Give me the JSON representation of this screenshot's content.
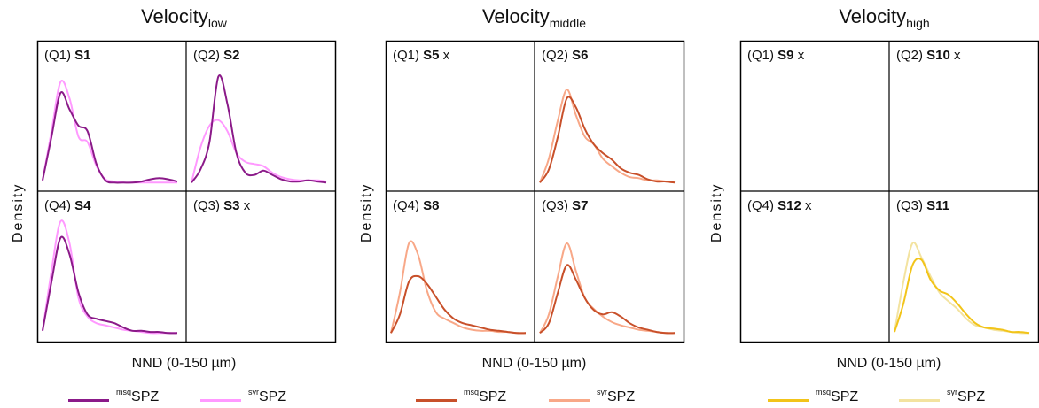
{
  "x_label": "NND (0-150 µm)",
  "y_label": "Density",
  "legend_suffix": "SPZ",
  "groups": [
    {
      "title_main": "Velocity",
      "title_sub": "low",
      "legend": [
        {
          "sup": "msq",
          "color": "#8B1A89"
        },
        {
          "sup": "syr",
          "color": "#FF99FF"
        }
      ],
      "panels": [
        {
          "q": "(Q1)",
          "s": "S1",
          "x": ""
        },
        {
          "q": "(Q2)",
          "s": "S2",
          "x": ""
        },
        {
          "q": "(Q4)",
          "s": "S4",
          "x": ""
        },
        {
          "q": "(Q3)",
          "s": "S3",
          "x": "x"
        }
      ]
    },
    {
      "title_main": "Velocity",
      "title_sub": "middle",
      "legend": [
        {
          "sup": "msq",
          "color": "#C8502A"
        },
        {
          "sup": "syr",
          "color": "#F8A888"
        }
      ],
      "panels": [
        {
          "q": "(Q1)",
          "s": "S5",
          "x": "x"
        },
        {
          "q": "(Q2)",
          "s": "S6",
          "x": ""
        },
        {
          "q": "(Q4)",
          "s": "S8",
          "x": ""
        },
        {
          "q": "(Q3)",
          "s": "S7",
          "x": ""
        }
      ]
    },
    {
      "title_main": "Velocity",
      "title_sub": "high",
      "legend": [
        {
          "sup": "msq",
          "color": "#F2C419"
        },
        {
          "sup": "syr",
          "color": "#F3E3A0"
        }
      ],
      "panels": [
        {
          "q": "(Q1)",
          "s": "S9",
          "x": "x"
        },
        {
          "q": "(Q2)",
          "s": "S10",
          "x": "x"
        },
        {
          "q": "(Q4)",
          "s": "S12",
          "x": "x"
        },
        {
          "q": "(Q3)",
          "s": "S11",
          "x": ""
        }
      ]
    }
  ],
  "chart_data": [
    {
      "type": "line",
      "title": "Velocity low",
      "xlabel": "NND (0-150 µm)",
      "ylabel": "Density",
      "x": [
        0,
        10,
        20,
        30,
        40,
        50,
        60,
        70,
        80,
        90,
        100,
        110,
        120,
        130,
        140,
        150
      ],
      "panels": [
        {
          "panel": "S1",
          "series": [
            {
              "name": "msqSPZ",
              "values": [
                0.05,
                0.45,
                0.85,
                0.7,
                0.55,
                0.5,
                0.2,
                0.05,
                0.03,
                0.03,
                0.03,
                0.04,
                0.06,
                0.07,
                0.06,
                0.04
              ]
            },
            {
              "name": "syrSPZ",
              "values": [
                0.05,
                0.5,
                0.95,
                0.8,
                0.45,
                0.4,
                0.18,
                0.06,
                0.04,
                0.03,
                0.03,
                0.03,
                0.03,
                0.03,
                0.03,
                0.03
              ]
            }
          ]
        },
        {
          "panel": "S2",
          "series": [
            {
              "name": "msqSPZ",
              "values": [
                0.03,
                0.15,
                0.4,
                1.0,
                0.75,
                0.3,
                0.12,
                0.1,
                0.14,
                0.1,
                0.06,
                0.04,
                0.04,
                0.05,
                0.04,
                0.03
              ]
            },
            {
              "name": "syrSPZ",
              "values": [
                0.03,
                0.35,
                0.55,
                0.6,
                0.5,
                0.3,
                0.22,
                0.2,
                0.18,
                0.12,
                0.08,
                0.06,
                0.05,
                0.05,
                0.05,
                0.04
              ]
            }
          ]
        },
        {
          "panel": "S4",
          "series": [
            {
              "name": "msqSPZ",
              "values": [
                0.05,
                0.5,
                0.9,
                0.75,
                0.4,
                0.2,
                0.16,
                0.14,
                0.12,
                0.08,
                0.05,
                0.05,
                0.04,
                0.04,
                0.03,
                0.03
              ]
            },
            {
              "name": "syrSPZ",
              "values": [
                0.05,
                0.6,
                1.05,
                0.85,
                0.35,
                0.18,
                0.12,
                0.1,
                0.08,
                0.06,
                0.05,
                0.04,
                0.03,
                0.03,
                0.03,
                0.03
              ]
            }
          ]
        },
        {
          "panel": "S3",
          "series": []
        }
      ]
    },
    {
      "type": "line",
      "title": "Velocity middle",
      "xlabel": "NND (0-150 µm)",
      "ylabel": "Density",
      "x": [
        0,
        10,
        20,
        30,
        40,
        50,
        60,
        70,
        80,
        90,
        100,
        110,
        120,
        130,
        140,
        150
      ],
      "panels": [
        {
          "panel": "S5",
          "series": []
        },
        {
          "panel": "S6",
          "series": [
            {
              "name": "msqSPZ",
              "values": [
                0.03,
                0.15,
                0.45,
                0.8,
                0.72,
                0.52,
                0.38,
                0.3,
                0.24,
                0.16,
                0.12,
                0.1,
                0.06,
                0.04,
                0.04,
                0.03
              ]
            },
            {
              "name": "syrSPZ",
              "values": [
                0.03,
                0.25,
                0.6,
                0.88,
                0.65,
                0.45,
                0.38,
                0.25,
                0.18,
                0.12,
                0.08,
                0.07,
                0.05,
                0.05,
                0.04,
                0.03
              ]
            }
          ]
        },
        {
          "panel": "S8",
          "series": [
            {
              "name": "msqSPZ",
              "values": [
                0.03,
                0.2,
                0.5,
                0.55,
                0.48,
                0.36,
                0.24,
                0.16,
                0.12,
                0.1,
                0.08,
                0.06,
                0.05,
                0.04,
                0.03,
                0.03
              ]
            },
            {
              "name": "syrSPZ",
              "values": [
                0.03,
                0.4,
                0.85,
                0.75,
                0.42,
                0.22,
                0.16,
                0.12,
                0.08,
                0.06,
                0.05,
                0.05,
                0.04,
                0.04,
                0.03,
                0.03
              ]
            }
          ]
        },
        {
          "panel": "S7",
          "series": [
            {
              "name": "msqSPZ",
              "values": [
                0.03,
                0.12,
                0.4,
                0.65,
                0.52,
                0.35,
                0.24,
                0.2,
                0.22,
                0.18,
                0.12,
                0.08,
                0.06,
                0.04,
                0.03,
                0.03
              ]
            },
            {
              "name": "syrSPZ",
              "values": [
                0.03,
                0.2,
                0.55,
                0.85,
                0.6,
                0.35,
                0.25,
                0.18,
                0.13,
                0.1,
                0.08,
                0.06,
                0.05,
                0.04,
                0.03,
                0.03
              ]
            }
          ]
        }
      ]
    },
    {
      "type": "line",
      "title": "Velocity high",
      "xlabel": "NND (0-150 µm)",
      "ylabel": "Density",
      "x": [
        0,
        10,
        20,
        30,
        40,
        50,
        60,
        70,
        80,
        90,
        100,
        110,
        120,
        130,
        140,
        150
      ],
      "panels": [
        {
          "panel": "S9",
          "series": []
        },
        {
          "panel": "S10",
          "series": []
        },
        {
          "panel": "S12",
          "series": []
        },
        {
          "panel": "S11",
          "series": [
            {
              "name": "msqSPZ",
              "values": [
                0.04,
                0.3,
                0.65,
                0.7,
                0.52,
                0.42,
                0.38,
                0.3,
                0.2,
                0.12,
                0.08,
                0.07,
                0.06,
                0.04,
                0.04,
                0.03
              ]
            },
            {
              "name": "syrSPZ",
              "values": [
                0.04,
                0.5,
                0.85,
                0.72,
                0.55,
                0.4,
                0.32,
                0.25,
                0.16,
                0.1,
                0.08,
                0.06,
                0.05,
                0.04,
                0.03,
                0.03
              ]
            }
          ]
        }
      ]
    }
  ]
}
